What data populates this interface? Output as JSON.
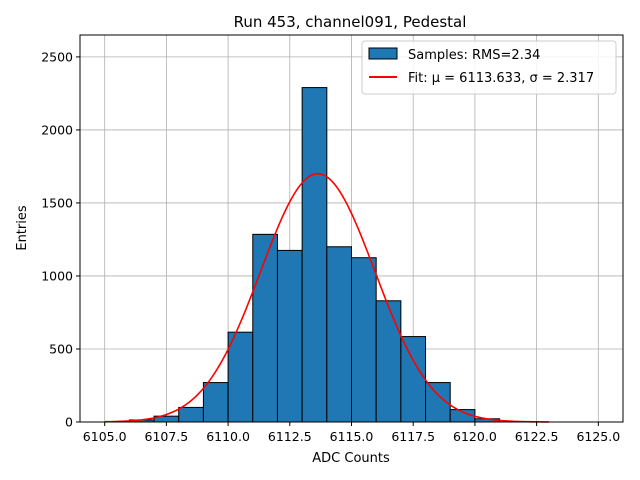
{
  "chart_data": {
    "type": "bar",
    "title": "Run 453, channel091, Pedestal",
    "xlabel": "ADC Counts",
    "ylabel": "Entries",
    "xlim": [
      6104.0,
      6126.0
    ],
    "ylim": [
      0,
      2650
    ],
    "xticks": [
      6105.0,
      6107.5,
      6110.0,
      6112.5,
      6115.0,
      6117.5,
      6120.0,
      6122.5,
      6125.0
    ],
    "xtick_labels": [
      "6105.0",
      "6107.5",
      "6110.0",
      "6112.5",
      "6115.0",
      "6117.5",
      "6120.0",
      "6122.5",
      "6125.0"
    ],
    "yticks": [
      0,
      500,
      1000,
      1500,
      2000,
      2500
    ],
    "ytick_labels": [
      "0",
      "500",
      "1000",
      "1500",
      "2000",
      "2500"
    ],
    "grid": true,
    "legend_position": "top-right",
    "histogram": {
      "name": "Samples: RMS=2.34",
      "color": "#1f77b4",
      "edge_color": "#000000",
      "bins": [
        {
          "left": 6106.0,
          "right": 6107.0,
          "count": 14
        },
        {
          "left": 6107.0,
          "right": 6108.0,
          "count": 40
        },
        {
          "left": 6108.0,
          "right": 6109.0,
          "count": 100
        },
        {
          "left": 6109.0,
          "right": 6110.0,
          "count": 270
        },
        {
          "left": 6110.0,
          "right": 6111.0,
          "count": 615
        },
        {
          "left": 6111.0,
          "right": 6112.0,
          "count": 1285
        },
        {
          "left": 6112.0,
          "right": 6113.0,
          "count": 1175
        },
        {
          "left": 6113.0,
          "right": 6114.0,
          "count": 2290
        },
        {
          "left": 6114.0,
          "right": 6115.0,
          "count": 1200
        },
        {
          "left": 6115.0,
          "right": 6116.0,
          "count": 1125
        },
        {
          "left": 6116.0,
          "right": 6117.0,
          "count": 830
        },
        {
          "left": 6117.0,
          "right": 6118.0,
          "count": 585
        },
        {
          "left": 6118.0,
          "right": 6119.0,
          "count": 270
        },
        {
          "left": 6119.0,
          "right": 6120.0,
          "count": 85
        },
        {
          "left": 6120.0,
          "right": 6121.0,
          "count": 22
        }
      ]
    },
    "fit": {
      "name": "Fit: μ = 6113.633, σ = 2.317",
      "color": "#ff0000",
      "mu": 6113.633,
      "sigma": 2.317,
      "amplitude": 1700,
      "x_range": [
        6105.0,
        6123.0
      ]
    }
  }
}
